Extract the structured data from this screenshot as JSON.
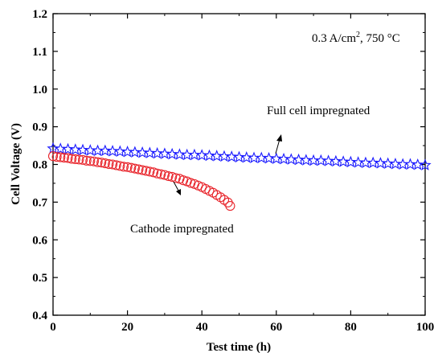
{
  "chart_data": {
    "type": "scatter",
    "title": "",
    "xlabel": "Test time (h)",
    "ylabel": "Cell Voltage (V)",
    "xlim": [
      0,
      100
    ],
    "ylim": [
      0.4,
      1.2
    ],
    "xticks": [
      0,
      20,
      40,
      60,
      80,
      100
    ],
    "yticks": [
      0.4,
      0.5,
      0.6,
      0.7,
      0.8,
      0.9,
      1.0,
      1.1,
      1.2
    ],
    "xtick_labels": [
      "0",
      "20",
      "40",
      "60",
      "80",
      "100"
    ],
    "ytick_labels": [
      "0.4",
      "0.5",
      "0.6",
      "0.7",
      "0.8",
      "0.9",
      "1.0",
      "1.1",
      "1.2"
    ],
    "grid": false,
    "condition_label": {
      "prefix": "0.3 A/cm",
      "sup": "2",
      "suffix": ", 750 °C"
    },
    "series": [
      {
        "name": "Full cell impregnated",
        "marker": "star",
        "color": "#1a1aff",
        "x": [
          0,
          2,
          4,
          6,
          8,
          10,
          12,
          14,
          16,
          18,
          20,
          22,
          24,
          26,
          28,
          30,
          32,
          34,
          36,
          38,
          40,
          42,
          44,
          46,
          48,
          50,
          52,
          54,
          56,
          58,
          60,
          62,
          64,
          66,
          68,
          70,
          72,
          74,
          76,
          78,
          80,
          82,
          84,
          86,
          88,
          90,
          92,
          94,
          96,
          98,
          100
        ],
        "y": [
          0.842,
          0.841,
          0.84,
          0.839,
          0.838,
          0.837,
          0.836,
          0.836,
          0.835,
          0.834,
          0.833,
          0.832,
          0.831,
          0.83,
          0.829,
          0.828,
          0.827,
          0.826,
          0.825,
          0.825,
          0.824,
          0.823,
          0.822,
          0.821,
          0.82,
          0.819,
          0.818,
          0.817,
          0.817,
          0.816,
          0.815,
          0.814,
          0.813,
          0.812,
          0.811,
          0.81,
          0.81,
          0.809,
          0.808,
          0.807,
          0.806,
          0.805,
          0.804,
          0.804,
          0.803,
          0.802,
          0.801,
          0.8,
          0.8,
          0.799,
          0.798
        ]
      },
      {
        "name": "Cathode impregnated",
        "marker": "circle",
        "color": "#e8242b",
        "x": [
          0,
          1,
          2,
          3,
          4,
          5,
          6,
          7,
          8,
          9,
          10,
          11,
          12,
          13,
          14,
          15,
          16,
          17,
          18,
          19,
          20,
          21,
          22,
          23,
          24,
          25,
          26,
          27,
          28,
          29,
          30,
          31,
          32,
          33,
          34,
          35,
          36,
          37,
          38,
          39,
          40,
          41,
          42,
          43,
          44,
          45,
          46,
          47,
          47.6
        ],
        "y": [
          0.822,
          0.82,
          0.819,
          0.818,
          0.817,
          0.815,
          0.814,
          0.813,
          0.812,
          0.81,
          0.809,
          0.808,
          0.806,
          0.805,
          0.803,
          0.801,
          0.8,
          0.798,
          0.796,
          0.794,
          0.793,
          0.791,
          0.789,
          0.787,
          0.785,
          0.783,
          0.781,
          0.779,
          0.776,
          0.774,
          0.772,
          0.769,
          0.767,
          0.764,
          0.762,
          0.758,
          0.755,
          0.751,
          0.748,
          0.744,
          0.74,
          0.735,
          0.73,
          0.725,
          0.719,
          0.713,
          0.706,
          0.699,
          0.69
        ]
      }
    ],
    "annotations": [
      {
        "text": "Full cell impregnated",
        "series": 0
      },
      {
        "text": "Cathode impregnated",
        "series": 1
      }
    ]
  }
}
